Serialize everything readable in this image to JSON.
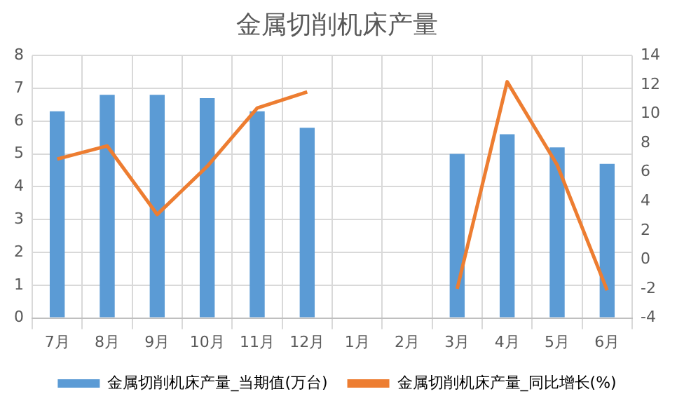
{
  "chart_data": {
    "type": "bar",
    "title": "金属切削机床产量",
    "categories": [
      "7月",
      "8月",
      "9月",
      "10月",
      "11月",
      "12月",
      "1月",
      "2月",
      "3月",
      "4月",
      "5月",
      "6月"
    ],
    "series": [
      {
        "name": "金属切削机床产量_当期值(万台)",
        "color": "#5b9bd5",
        "values": [
          6.3,
          6.8,
          6.8,
          6.7,
          6.3,
          5.8,
          null,
          null,
          5.0,
          5.6,
          5.2,
          4.7
        ]
      },
      {
        "name": "金属切削机床产量_同比增长(%)",
        "type": "line",
        "axis": "y2",
        "color": "#ed7d31",
        "values": [
          6.9,
          7.8,
          3.1,
          6.4,
          10.4,
          11.5,
          null,
          null,
          -2.0,
          12.2,
          6.5,
          -2.1
        ]
      }
    ],
    "ylim": [
      0,
      8
    ],
    "yticks": [
      0,
      1,
      2,
      3,
      4,
      5,
      6,
      7,
      8
    ],
    "y2lim": [
      -4,
      14
    ],
    "y2ticks": [
      -4,
      -2,
      0,
      2,
      4,
      6,
      8,
      10,
      12,
      14
    ],
    "grid": true,
    "legend": "bottom",
    "marker": "none"
  }
}
